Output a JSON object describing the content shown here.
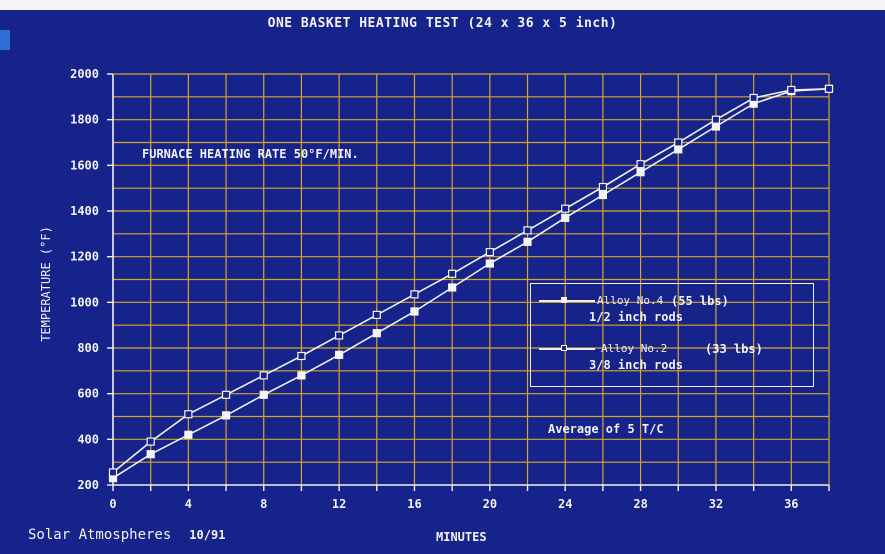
{
  "chart_data": {
    "type": "line",
    "title": "ONE BASKET HEATING TEST  (24 x 36 x 5 inch)",
    "xlabel": "MINUTES",
    "ylabel": "TEMPERATURE (°F)",
    "xlim": [
      0,
      38
    ],
    "ylim": [
      200,
      2000
    ],
    "xticks": [
      0,
      4,
      8,
      12,
      16,
      20,
      24,
      28,
      32,
      36
    ],
    "yticks": [
      200,
      400,
      600,
      800,
      1000,
      1200,
      1400,
      1600,
      1800,
      2000
    ],
    "grid": true,
    "legend_position": "right",
    "annotations": {
      "rate": "FURNACE HEATING RATE 50°F/MIN.",
      "average": "Average of 5 T/C"
    },
    "series": [
      {
        "name": "Alloy No.4",
        "weight": "(55 lbs)",
        "subtitle": "1/2 inch  rods",
        "marker": "filled-square",
        "x": [
          0,
          2,
          4,
          6,
          8,
          10,
          12,
          14,
          16,
          18,
          20,
          22,
          24,
          26,
          28,
          30,
          32,
          34,
          36,
          38
        ],
        "values": [
          230,
          335,
          420,
          505,
          595,
          680,
          770,
          865,
          960,
          1065,
          1170,
          1265,
          1370,
          1470,
          1570,
          1670,
          1770,
          1870,
          1925,
          1935
        ]
      },
      {
        "name": "Alloy No.2",
        "weight": "(33 lbs)",
        "subtitle": "3/8 inch rods",
        "marker": "hollow-square",
        "x": [
          0,
          2,
          4,
          6,
          8,
          10,
          12,
          14,
          16,
          18,
          20,
          22,
          24,
          26,
          28,
          30,
          32,
          34,
          36,
          38
        ],
        "values": [
          255,
          390,
          510,
          595,
          680,
          765,
          855,
          945,
          1035,
          1125,
          1220,
          1315,
          1410,
          1505,
          1605,
          1700,
          1800,
          1895,
          1930,
          1935
        ]
      }
    ]
  },
  "footer": {
    "company": "Solar Atmospheres",
    "date": "10/91"
  },
  "colors": {
    "background": "#16238a",
    "grid": "#d8a52c",
    "axis": "#f0f0f0",
    "text": "#f2f2f2"
  }
}
